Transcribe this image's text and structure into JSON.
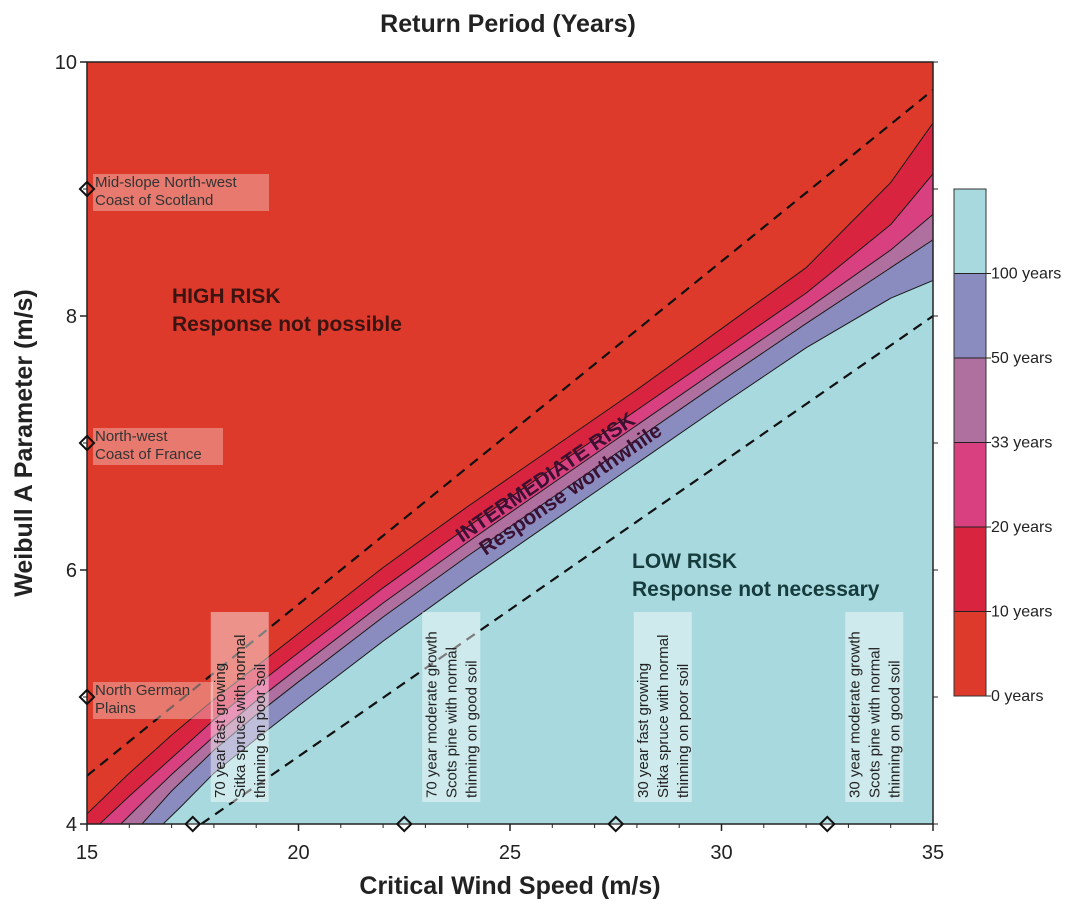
{
  "chart_data": {
    "type": "area",
    "title": "Return Period (Years)",
    "xlabel": "Critical Wind Speed (m/s)",
    "ylabel": "Weibull A Parameter (m/s)",
    "xlim": [
      15,
      35
    ],
    "ylim": [
      4,
      10
    ],
    "x_ticks": [
      "15",
      "20",
      "25",
      "30",
      "35"
    ],
    "y_ticks": [
      "4",
      "6",
      "8",
      "10"
    ],
    "colors": {
      "band_0": "#dd3a2b",
      "band_10": "#d8243e",
      "band_20": "#d8407f",
      "band_33": "#b0709f",
      "band_50": "#8a8bbe",
      "band_100": "#a8d9de",
      "outline": "#1a1a1a"
    },
    "contours": [
      {
        "name": "10 years",
        "points": [
          [
            15,
            4.08
          ],
          [
            16,
            4.4
          ],
          [
            17,
            4.7
          ],
          [
            18,
            4.98
          ],
          [
            19,
            5.24
          ],
          [
            20,
            5.5
          ],
          [
            22,
            6.02
          ],
          [
            24,
            6.5
          ],
          [
            26,
            6.96
          ],
          [
            28,
            7.42
          ],
          [
            30,
            7.9
          ],
          [
            32,
            8.38
          ],
          [
            34,
            9.05
          ],
          [
            35,
            9.52
          ]
        ]
      },
      {
        "name": "20 years",
        "points": [
          [
            15.3,
            4.0
          ],
          [
            16,
            4.22
          ],
          [
            17,
            4.52
          ],
          [
            18,
            4.82
          ],
          [
            19,
            5.09
          ],
          [
            20,
            5.35
          ],
          [
            22,
            5.86
          ],
          [
            24,
            6.34
          ],
          [
            26,
            6.8
          ],
          [
            28,
            7.26
          ],
          [
            30,
            7.72
          ],
          [
            32,
            8.18
          ],
          [
            34,
            8.72
          ],
          [
            35,
            9.12
          ]
        ]
      },
      {
        "name": "33 years",
        "points": [
          [
            15.8,
            4.0
          ],
          [
            16.5,
            4.23
          ],
          [
            17,
            4.39
          ],
          [
            18,
            4.69
          ],
          [
            19,
            4.97
          ],
          [
            20,
            5.23
          ],
          [
            22,
            5.74
          ],
          [
            24,
            6.22
          ],
          [
            26,
            6.68
          ],
          [
            28,
            7.14
          ],
          [
            30,
            7.6
          ],
          [
            32,
            8.05
          ],
          [
            34,
            8.52
          ],
          [
            35,
            8.8
          ]
        ]
      },
      {
        "name": "50 years",
        "points": [
          [
            16.3,
            4.0
          ],
          [
            17,
            4.26
          ],
          [
            18,
            4.58
          ],
          [
            19,
            4.86
          ],
          [
            20,
            5.12
          ],
          [
            22,
            5.63
          ],
          [
            24,
            6.11
          ],
          [
            26,
            6.57
          ],
          [
            28,
            7.03
          ],
          [
            30,
            7.49
          ],
          [
            32,
            7.94
          ],
          [
            34,
            8.38
          ],
          [
            35,
            8.6
          ]
        ]
      },
      {
        "name": "100 years",
        "points": [
          [
            16.8,
            4.0
          ],
          [
            17.2,
            4.13
          ],
          [
            18,
            4.4
          ],
          [
            19,
            4.67
          ],
          [
            20,
            4.93
          ],
          [
            22,
            5.44
          ],
          [
            24,
            5.92
          ],
          [
            26,
            6.38
          ],
          [
            28,
            6.84
          ],
          [
            30,
            7.3
          ],
          [
            32,
            7.75
          ],
          [
            34,
            8.14
          ],
          [
            35,
            8.28
          ]
        ]
      }
    ],
    "dashed_lines": [
      {
        "points": [
          [
            15,
            4.38
          ],
          [
            35,
            9.78
          ]
        ]
      },
      {
        "points": [
          [
            17.7,
            4.0
          ],
          [
            35,
            8.0
          ]
        ]
      }
    ],
    "colorbar": {
      "labels": [
        "0 years",
        "10 years",
        "20 years",
        "33 years",
        "50 years",
        "100 years"
      ]
    },
    "regions": [
      {
        "line1": "HIGH RISK",
        "line2": "Response not possible",
        "color": "#3b1412"
      },
      {
        "line1": "INTERMEDIATE RISK",
        "line2": "Response worthwhile",
        "color": "#3b1030"
      },
      {
        "line1": "LOW RISK",
        "line2": "Response not necessary",
        "color": "#163b3d"
      }
    ],
    "sites": [
      {
        "line1": "Mid-slope North-west",
        "line2": "Coast of Scotland",
        "x": 15,
        "y": 9
      },
      {
        "line1": "North-west",
        "line2": "Coast of France",
        "x": 15,
        "y": 7
      },
      {
        "line1": "North German",
        "line2": "Plains",
        "x": 15,
        "y": 5
      }
    ],
    "scenarios": [
      {
        "lines": [
          "70 year fast growing",
          "Sitka spruce with normal",
          "thinning on poor soil"
        ],
        "x": 17.5,
        "y": 4
      },
      {
        "lines": [
          "70 year moderate growth",
          "Scots pine with normal",
          "thinning on good soil"
        ],
        "x": 22.5,
        "y": 4
      },
      {
        "lines": [
          "30 year fast growing",
          "Sitka spruce with normal",
          "thinning on poor soil"
        ],
        "x": 27.5,
        "y": 4
      },
      {
        "lines": [
          "30 year moderate growth",
          "Scots pine with normal",
          "thinning on good soil"
        ],
        "x": 32.5,
        "y": 4
      }
    ]
  }
}
